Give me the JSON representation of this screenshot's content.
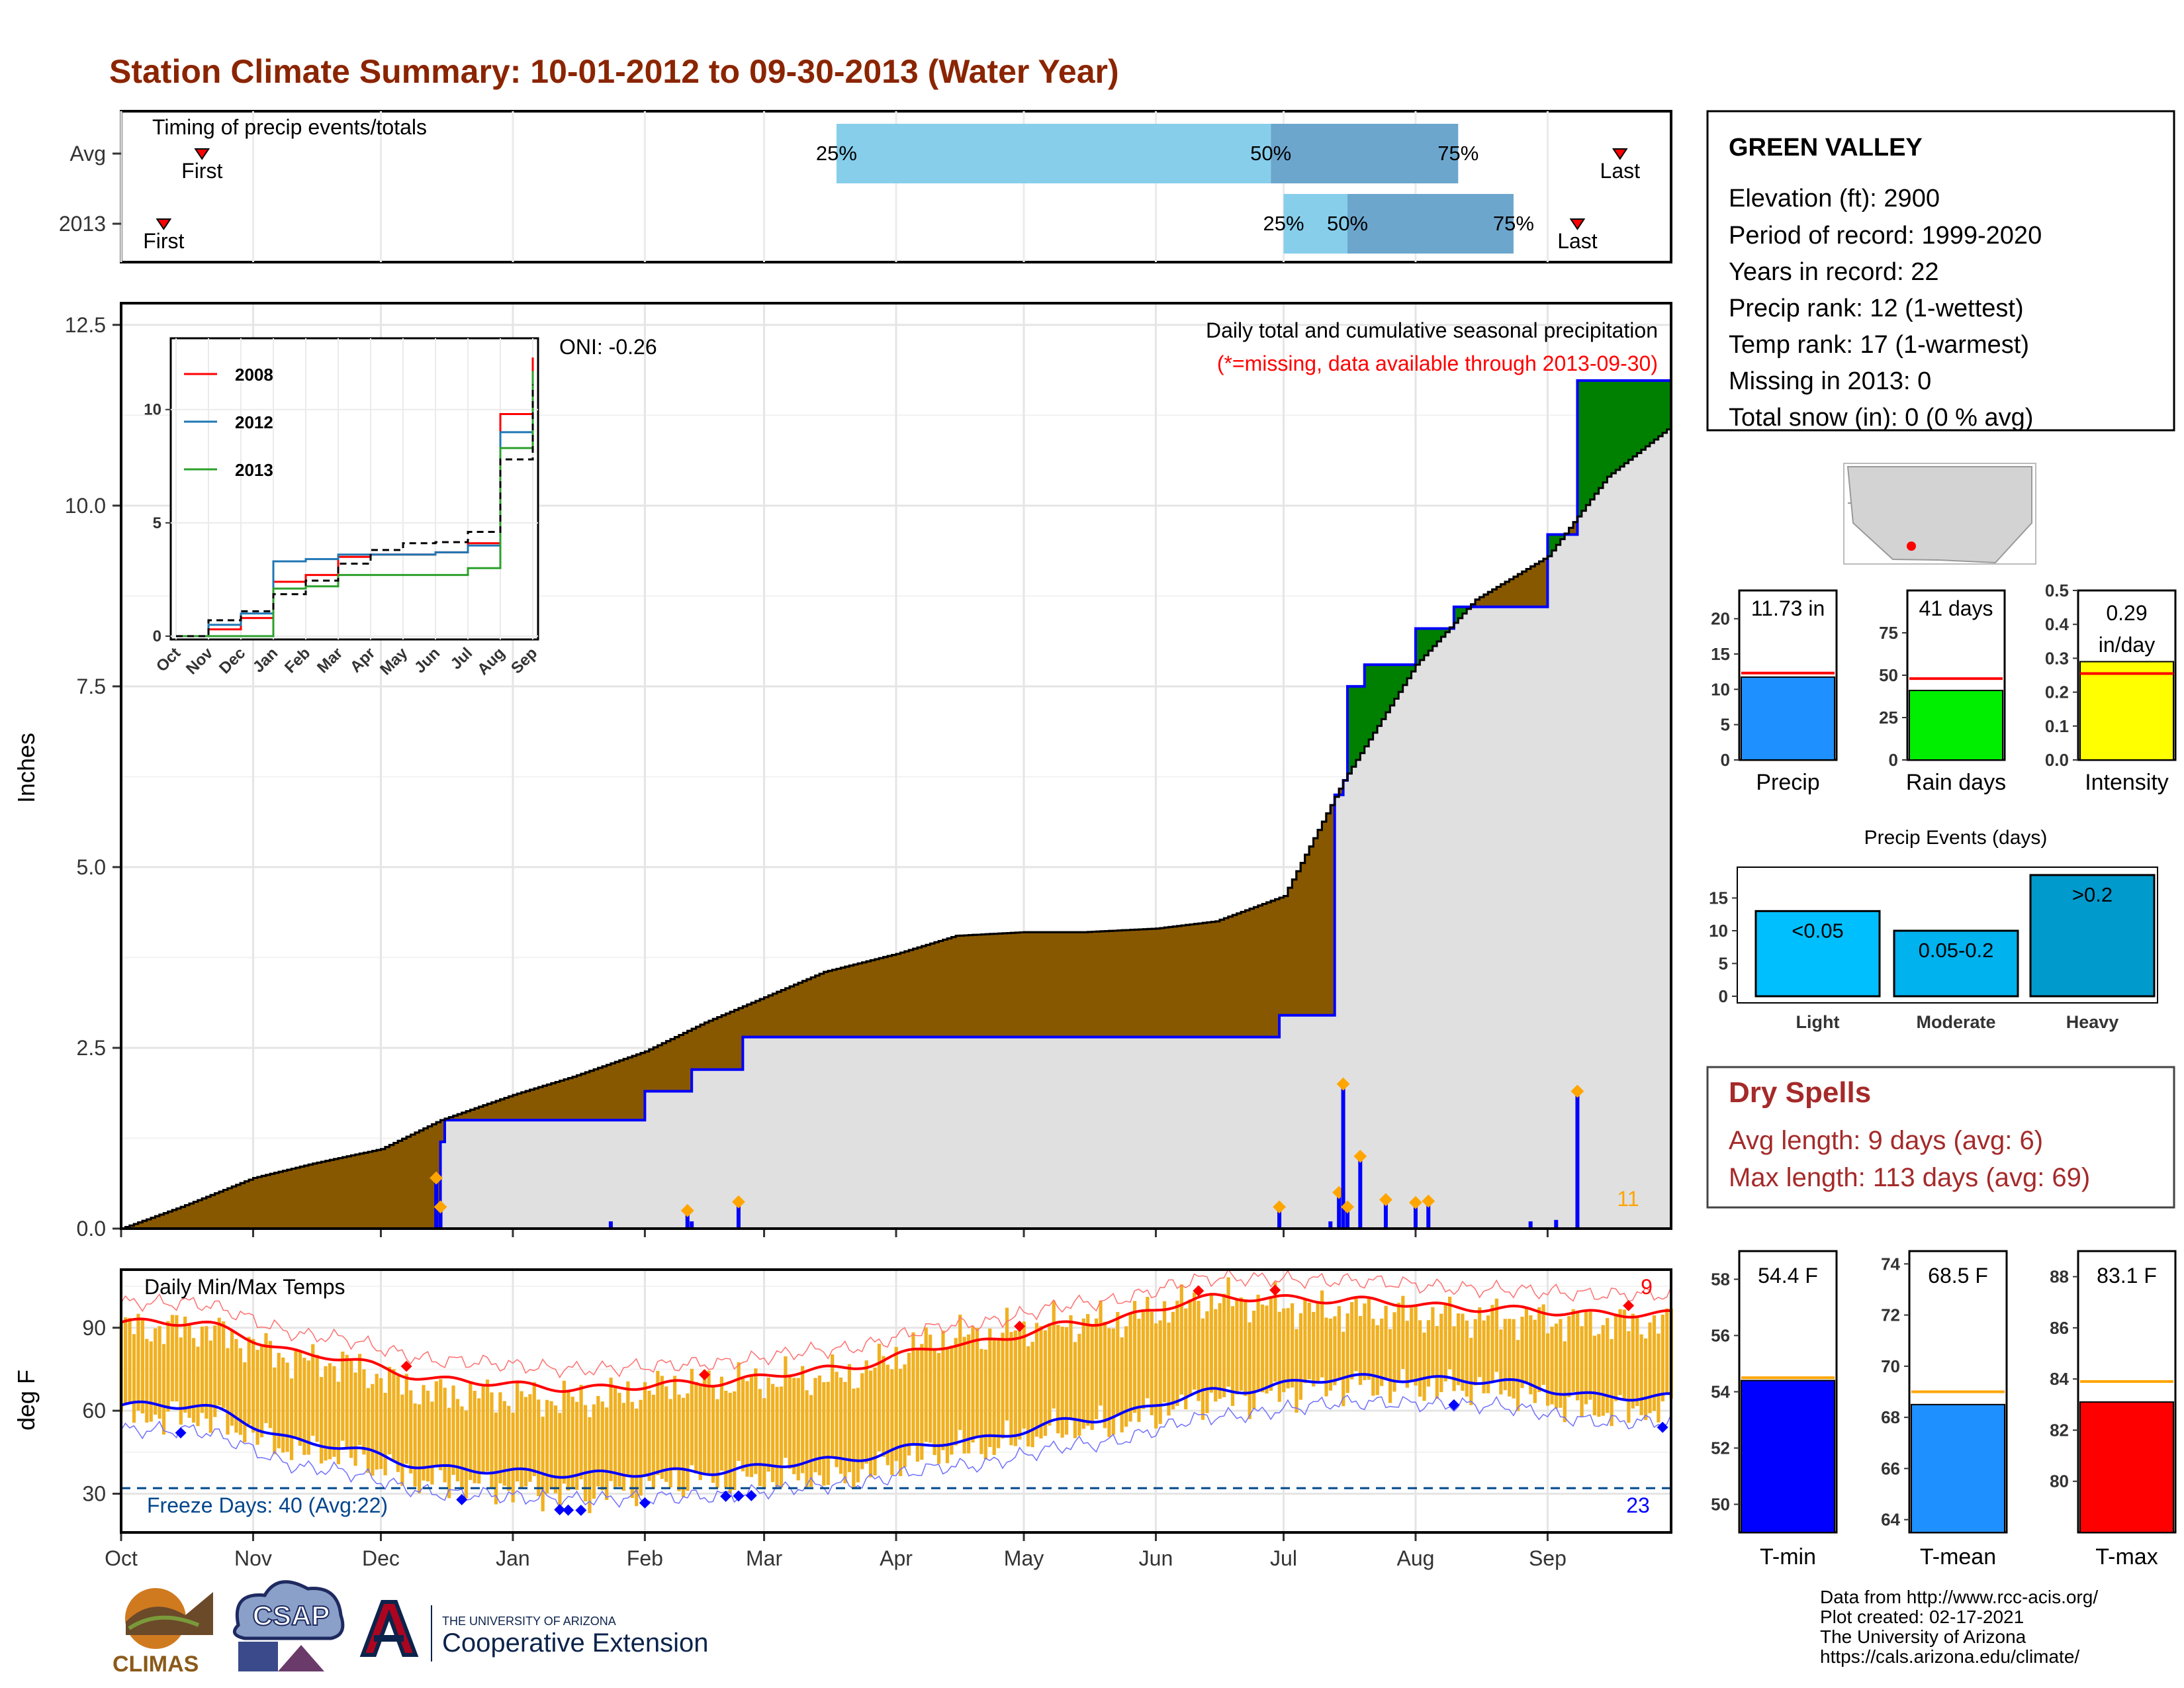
{
  "title": "Station Climate Summary: 10-01-2012 to 09-30-2013 (Water Year)",
  "colors": {
    "title": "#8B2500",
    "cum_avg_fill": "#885800",
    "cum_year_fill": "#008000",
    "frame_fill": "#e0e0e0",
    "daily_bar": "#0000ff",
    "marker": "#ffa500",
    "tmax_line": "#ff0000",
    "tmin_line": "#0000ff",
    "temp_bar": "#f0b020",
    "freeze_line": "#00468c",
    "precip_bar": "#1e90ff",
    "rain_days_bar": "#00ee00",
    "intensity_bar": "#ffff00",
    "events_bar": "#00b2ee",
    "tmin_bar": "#0000ff",
    "tmean_bar": "#1e90ff",
    "tmax_bar": "#ff0000",
    "dry_spells": "#a52a2a"
  },
  "timing": {
    "title": "Timing of precip events/totals",
    "rows": [
      {
        "label": "Avg",
        "first_label": "First",
        "last_label": "Last",
        "first": "10-20",
        "last": "09-18",
        "q25": "03-18",
        "q50": "06-28",
        "q75": "08-11",
        "pct25": "25%",
        "pct50": "50%",
        "pct75": "75%"
      },
      {
        "label": "2013",
        "first_label": "First",
        "last_label": "Last",
        "first": "10-11",
        "last": "09-08",
        "q25": "07-01",
        "q50": "07-16",
        "q75": "08-24",
        "pct25": "25%",
        "pct50": "50%",
        "pct75": "75%"
      }
    ]
  },
  "main": {
    "ylabel": "Inches",
    "title": "Daily total and cumulative seasonal precipitation",
    "subtitle": "(*=missing, data available through 2013-09-30)",
    "oni": "ONI: -0.26",
    "daily_count": "11",
    "x_ticks": [
      "Oct",
      "Nov",
      "Dec",
      "Jan",
      "Feb",
      "Mar",
      "Apr",
      "May",
      "Jun",
      "Jul",
      "Aug",
      "Sep"
    ],
    "y_ticks": [
      "0.0",
      "2.5",
      "5.0",
      "7.5",
      "10.0",
      "12.5"
    ]
  },
  "inset": {
    "legend": [
      "2008",
      "2012",
      "2013"
    ],
    "y_ticks": [
      "0",
      "5",
      "10"
    ],
    "x_ticks": [
      "Oct",
      "Nov",
      "Dec",
      "Jan",
      "Feb",
      "Mar",
      "Apr",
      "May",
      "Jun",
      "Jul",
      "Aug",
      "Sep"
    ]
  },
  "temps": {
    "ylabel": "deg F",
    "title": "Daily Min/Max Temps",
    "freeze_label": "Freeze Days: 40 (Avg:22)",
    "max_record_count": "9",
    "min_record_count": "23",
    "y_ticks": [
      "30",
      "60",
      "90"
    ]
  },
  "station": {
    "name": "GREEN VALLEY",
    "lines": [
      "Elevation (ft): 2900",
      "Period of record: 1999-2020",
      "Years in record: 22",
      "Precip rank: 12 (1-wettest)",
      "Temp rank: 17 (1-warmest)",
      "Missing in 2013: 0",
      "Total snow (in): 0 (0 % avg)"
    ]
  },
  "summary_bars": [
    {
      "name": "Precip",
      "label": "11.73 in",
      "value": 11.73,
      "avg": 12.3,
      "ymax": 24,
      "ticks": [
        "0",
        "5",
        "10",
        "15",
        "20"
      ]
    },
    {
      "name": "Rain days",
      "label": "41 days",
      "value": 41,
      "avg": 48,
      "ymax": 100,
      "ticks": [
        "0",
        "25",
        "50",
        "75"
      ]
    },
    {
      "name": "Intensity",
      "label": "0.29",
      "label2": "in/day",
      "value": 0.29,
      "avg": 0.255,
      "ymax": 0.5,
      "ticks": [
        "0.0",
        "0.1",
        "0.2",
        "0.3",
        "0.4",
        "0.5"
      ]
    }
  ],
  "events": {
    "title": "Precip Events (days)",
    "categories": [
      "Light",
      "Moderate",
      "Heavy"
    ],
    "labels": [
      "<0.05",
      "0.05-0.2",
      ">0.2"
    ],
    "values": [
      13,
      10,
      18.5
    ],
    "ymax": 19.5,
    "ticks": [
      "0",
      "5",
      "10",
      "15"
    ]
  },
  "dry_spells": {
    "title": "Dry Spells",
    "avg": "Avg length: 9 days (avg: 6)",
    "max": "Max length: 113 days (avg: 69)"
  },
  "temp_bars": [
    {
      "name": "T-min",
      "label": "54.4 F",
      "value": 54.4,
      "avg": 54.5,
      "ymin": 49,
      "ymax": 59,
      "ticks": [
        "50",
        "52",
        "54",
        "56",
        "58"
      ]
    },
    {
      "name": "T-mean",
      "label": "68.5 F",
      "value": 68.5,
      "avg": 69.0,
      "ymin": 63.5,
      "ymax": 74.5,
      "ticks": [
        "64",
        "66",
        "68",
        "70",
        "72",
        "74"
      ]
    },
    {
      "name": "T-max",
      "label": "83.1 F",
      "value": 83.1,
      "avg": 83.9,
      "ymin": 78,
      "ymax": 89,
      "ticks": [
        "80",
        "82",
        "84",
        "86",
        "88"
      ]
    }
  ],
  "footer": {
    "lines": [
      "Data from http://www.rcc-acis.org/",
      "Plot created: 02-17-2021",
      "The University of Arizona",
      "https://cals.arizona.edu/climate/"
    ],
    "logo_climas": "CLIMAS",
    "logo_csap": "CSAP",
    "logo_ua_small": "THE UNIVERSITY OF ARIZONA",
    "logo_ua_big": "Cooperative Extension"
  },
  "chart_data": [
    {
      "type": "area",
      "title": "Daily total and cumulative seasonal precipitation",
      "ylabel": "Inches",
      "ylim": [
        0,
        12.8
      ],
      "xlim": [
        "2012-10-01",
        "2013-09-30"
      ],
      "series": [
        {
          "name": "avg cumulative",
          "x": [
            "2012-10-01",
            "2012-10-15",
            "2012-11-01",
            "2012-11-15",
            "2012-12-01",
            "2012-12-15",
            "2013-01-01",
            "2013-01-15",
            "2013-02-01",
            "2013-02-15",
            "2013-03-01",
            "2013-03-15",
            "2013-04-01",
            "2013-04-15",
            "2013-05-01",
            "2013-05-15",
            "2013-06-01",
            "2013-06-15",
            "2013-07-01",
            "2013-07-15",
            "2013-08-01",
            "2013-08-15",
            "2013-09-01",
            "2013-09-15",
            "2013-09-30"
          ],
          "values": [
            0.0,
            0.3,
            0.7,
            0.9,
            1.1,
            1.5,
            1.85,
            2.1,
            2.45,
            2.85,
            3.2,
            3.55,
            3.8,
            4.05,
            4.1,
            4.1,
            4.15,
            4.25,
            4.6,
            6.2,
            7.8,
            8.7,
            9.3,
            10.4,
            11.1
          ]
        },
        {
          "name": "2013 cumulative",
          "x": [
            "2012-10-01",
            "2012-12-14",
            "2012-12-15",
            "2012-12-16",
            "2013-01-31",
            "2013-02-01",
            "2013-02-11",
            "2013-02-12",
            "2013-02-23",
            "2013-02-24",
            "2013-06-29",
            "2013-06-30",
            "2013-07-12",
            "2013-07-13",
            "2013-07-15",
            "2013-07-16",
            "2013-07-20",
            "2013-08-01",
            "2013-08-10",
            "2013-08-20",
            "2013-09-01",
            "2013-09-08",
            "2013-09-30"
          ],
          "values": [
            0.0,
            0.0,
            1.2,
            1.5,
            1.5,
            1.9,
            1.9,
            2.2,
            2.2,
            2.65,
            2.65,
            2.95,
            2.95,
            6.0,
            6.2,
            7.5,
            7.8,
            8.3,
            8.6,
            8.6,
            9.6,
            11.73,
            11.73
          ]
        },
        {
          "name": "daily precip",
          "x": [
            "2012-12-14",
            "2012-12-15",
            "2013-01-24",
            "2013-02-11",
            "2013-02-12",
            "2013-02-23",
            "2013-06-30",
            "2013-07-12",
            "2013-07-14",
            "2013-07-15",
            "2013-07-16",
            "2013-07-19",
            "2013-07-25",
            "2013-08-01",
            "2013-08-04",
            "2013-08-28",
            "2013-09-03",
            "2013-09-08"
          ],
          "values": [
            0.7,
            0.3,
            0.1,
            0.25,
            0.1,
            0.37,
            0.3,
            0.1,
            0.5,
            2.0,
            0.3,
            1.0,
            0.4,
            0.36,
            0.38,
            0.1,
            0.12,
            1.9
          ]
        }
      ]
    },
    {
      "type": "line",
      "title": "Daily Min/Max Temps",
      "ylabel": "deg F",
      "ylim": [
        16,
        111
      ],
      "x": [
        "Oct",
        "Nov",
        "Dec",
        "Jan",
        "Feb",
        "Mar",
        "Apr",
        "May",
        "Jun",
        "Jul",
        "Aug",
        "Sep"
      ],
      "series": [
        {
          "name": "normal max",
          "values": [
            92,
            80,
            71,
            68,
            70,
            75,
            84,
            92,
            101,
            100,
            97,
            95
          ]
        },
        {
          "name": "normal min",
          "values": [
            62,
            48,
            39,
            37,
            38,
            42,
            49,
            57,
            67,
            72,
            71,
            65
          ]
        },
        {
          "name": "observed max",
          "values": [
            90,
            78,
            66,
            64,
            70,
            72,
            87,
            92,
            100,
            96,
            94,
            92
          ]
        },
        {
          "name": "observed min",
          "values": [
            58,
            45,
            34,
            30,
            35,
            36,
            46,
            54,
            64,
            69,
            68,
            60
          ]
        }
      ],
      "freeze_line": 32
    },
    {
      "type": "line",
      "title": "",
      "ylim": [
        0,
        13
      ],
      "x": [
        "Oct",
        "Nov",
        "Dec",
        "Jan",
        "Feb",
        "Mar",
        "Apr",
        "May",
        "Jun",
        "Jul",
        "Aug",
        "Sep"
      ],
      "series": [
        {
          "name": "2008",
          "values": [
            0.0,
            0.3,
            0.8,
            2.4,
            2.7,
            3.5,
            3.6,
            3.6,
            3.7,
            4.1,
            9.8,
            12.3
          ]
        },
        {
          "name": "2012",
          "values": [
            0.0,
            0.5,
            1.0,
            3.3,
            3.4,
            3.6,
            3.6,
            3.6,
            3.7,
            4.0,
            9.0,
            11.5
          ]
        },
        {
          "name": "2013",
          "values": [
            0.0,
            0.0,
            0.0,
            2.1,
            2.2,
            2.7,
            2.7,
            2.7,
            2.7,
            3.0,
            8.3,
            11.7
          ]
        },
        {
          "name": "avg",
          "values": [
            0.0,
            0.7,
            1.1,
            1.85,
            2.45,
            3.2,
            3.8,
            4.1,
            4.15,
            4.6,
            7.8,
            11.1
          ]
        }
      ]
    }
  ]
}
